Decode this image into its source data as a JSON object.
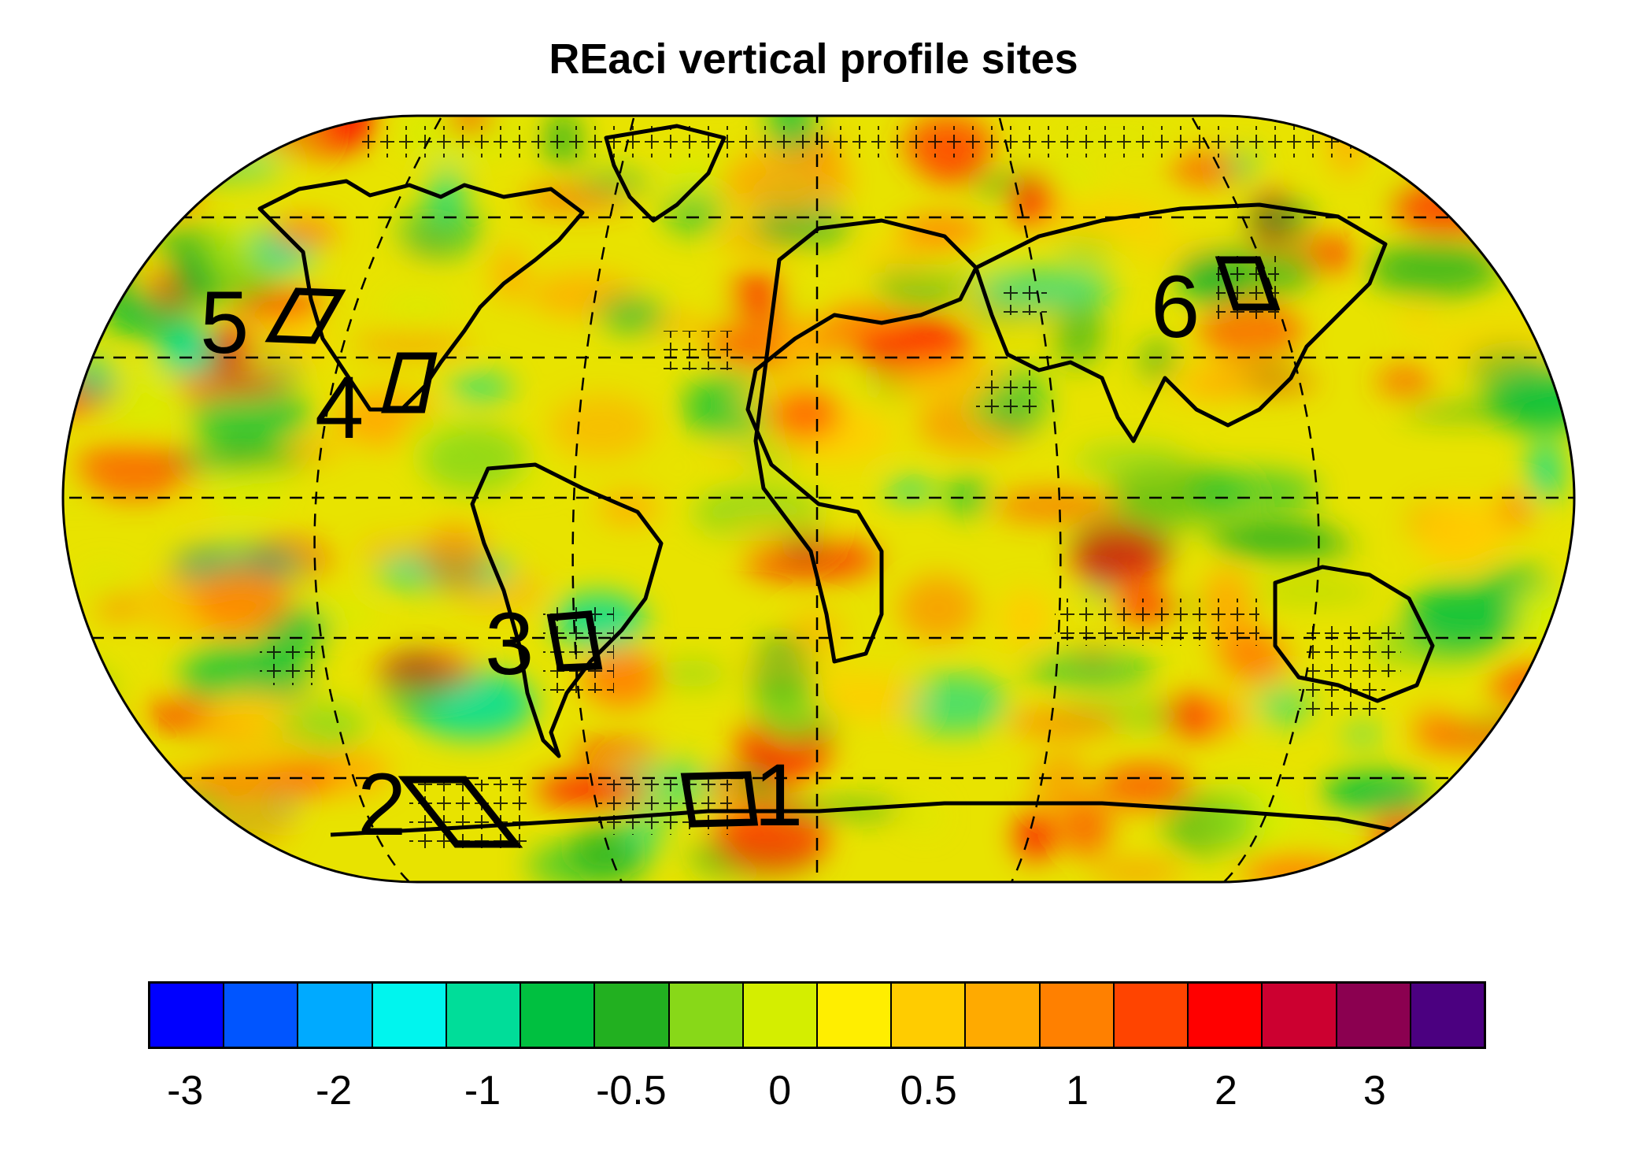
{
  "title": "REaci vertical profile sites",
  "map": {
    "projection": "robinson",
    "sites": [
      {
        "label": "1"
      },
      {
        "label": "2"
      },
      {
        "label": "3"
      },
      {
        "label": "4"
      },
      {
        "label": "5"
      },
      {
        "label": "6"
      }
    ],
    "colors": {
      "ocean_base": "#e8e300",
      "outline": "#000000"
    }
  },
  "colorbar": {
    "colors": [
      "#0000ff",
      "#0055ff",
      "#00aaff",
      "#00f5ee",
      "#00dd99",
      "#00c040",
      "#22b020",
      "#88d818",
      "#d4ee00",
      "#ffee00",
      "#ffcc00",
      "#ffaa00",
      "#ff8000",
      "#ff4400",
      "#ff0000",
      "#cc0030",
      "#8b0050",
      "#4b0080"
    ],
    "labels": [
      "-3",
      "-2",
      "-1",
      "-0.5",
      "0",
      "0.5",
      "1",
      "2",
      "3"
    ]
  }
}
